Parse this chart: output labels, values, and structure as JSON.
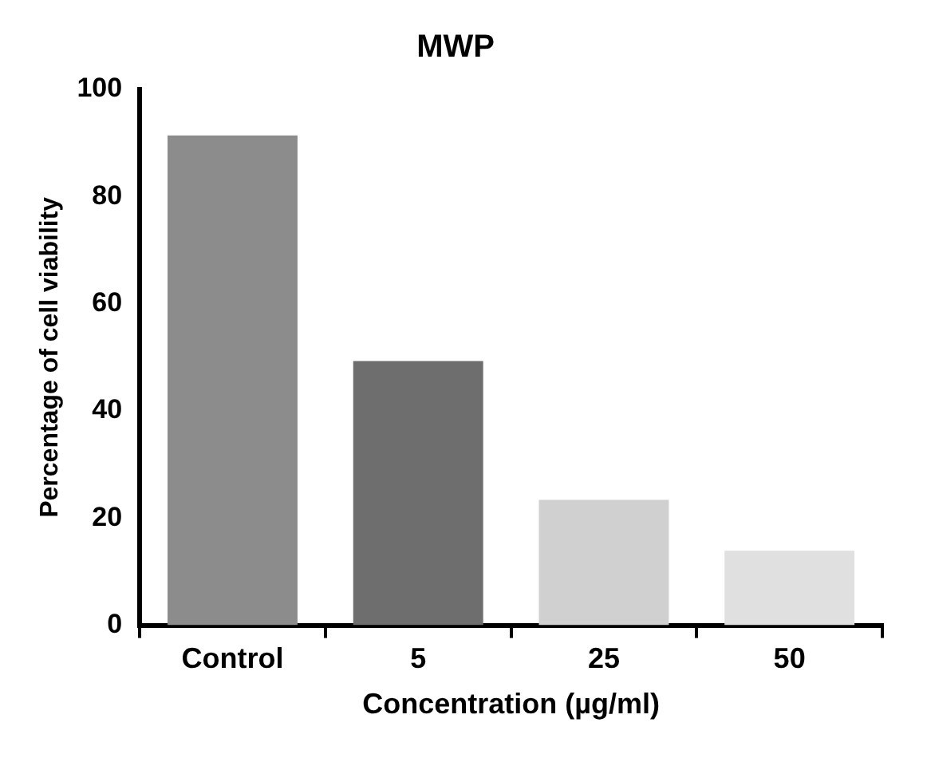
{
  "chart_data": {
    "type": "bar",
    "title": "MWP",
    "xlabel": "Concentration (µg/ml)",
    "ylabel": "Percentage of cell viability",
    "categories": [
      "Control",
      "5",
      "25",
      "50"
    ],
    "values": [
      91.4,
      49.3,
      23.4,
      13.9
    ],
    "colors": [
      "#8c8c8c",
      "#6e6e6e",
      "#d0d0d0",
      "#e0e0e0"
    ],
    "ylim": [
      0,
      100
    ],
    "yticks": [
      0,
      20,
      40,
      60,
      80,
      100
    ],
    "grid": false,
    "legend": false
  }
}
